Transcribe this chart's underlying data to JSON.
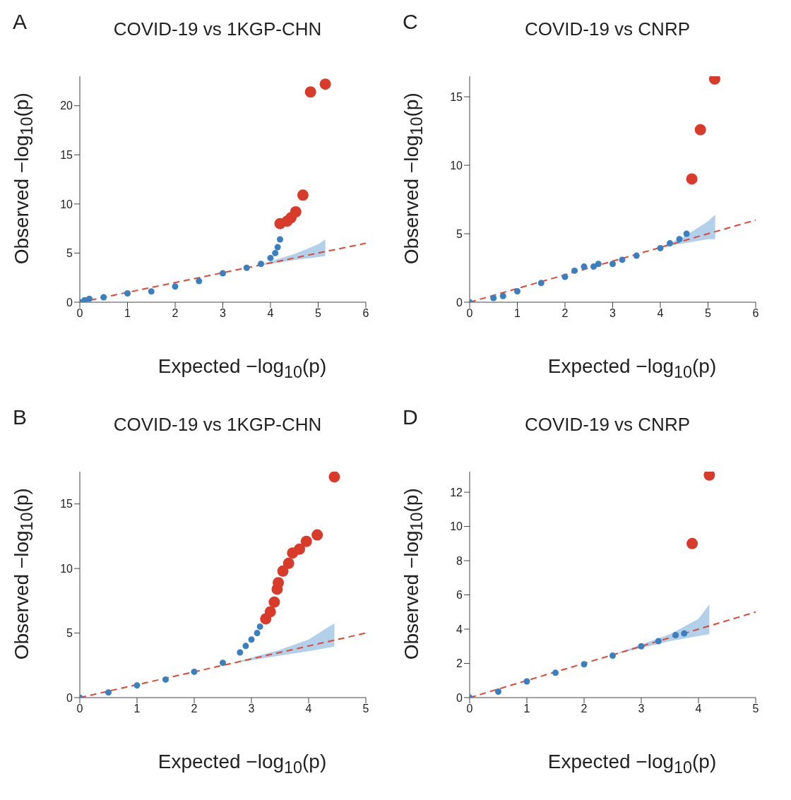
{
  "chart_data": [
    {
      "type": "scatter",
      "title": "COVID-19 vs 1KGP-CHN",
      "annotations": [
        "A"
      ],
      "xlabel": "Expected −log$_{10}$(p)",
      "ylabel": "Observed −log$_{10}$(p)",
      "xlim": [
        0,
        6
      ],
      "xticks": [
        0,
        1,
        2,
        3,
        4,
        5,
        6
      ],
      "ylim": [
        0,
        23
      ],
      "yticks": [
        0,
        5,
        10,
        15,
        20
      ],
      "marker": "circle",
      "series": [
        {
          "type": "line",
          "marker": "none",
          "color": "#e0473a",
          "line_style": "dashed",
          "x": [
            0,
            3.7,
            4,
            4.5,
            5,
            5.15,
            6
          ],
          "values": [
            0,
            3.7,
            4,
            4.5,
            5,
            5.15,
            6
          ],
          "lower": [
            null,
            3.7,
            3.9,
            4.3,
            4.6,
            4.7,
            null
          ],
          "upper": [
            null,
            3.7,
            4.15,
            4.9,
            5.9,
            6.4,
            null
          ]
        },
        {
          "color": "#3a7fbf",
          "x": [
            0,
            0.1,
            0.2,
            0.5,
            1,
            1.5,
            2,
            2.5,
            3,
            3.5,
            3.8,
            4.0,
            4.1,
            4.15,
            4.2
          ],
          "values": [
            0,
            0.2,
            0.35,
            0.5,
            0.9,
            1.1,
            1.6,
            2.15,
            2.95,
            3.5,
            3.9,
            4.5,
            5.0,
            5.6,
            6.4
          ]
        },
        {
          "color": "#d93b2b",
          "x": [
            4.2,
            4.35,
            4.43,
            4.53,
            4.68,
            4.84,
            5.15
          ],
          "values": [
            8.0,
            8.25,
            8.6,
            9.2,
            10.9,
            21.4,
            22.2
          ]
        }
      ]
    },
    {
      "type": "scatter",
      "title": "COVID-19 vs CNRP",
      "annotations": [
        "C"
      ],
      "xlabel": "Expected −log$_{10}$(p)",
      "ylabel": "Observed −log$_{10}$(p)",
      "xlim": [
        0,
        6
      ],
      "xticks": [
        0,
        1,
        2,
        3,
        4,
        5,
        6
      ],
      "ylim": [
        0,
        16.5
      ],
      "yticks": [
        0,
        5,
        10,
        15
      ],
      "marker": "circle",
      "series": [
        {
          "type": "line",
          "marker": "none",
          "color": "#e0473a",
          "line_style": "dashed",
          "x": [
            0,
            4,
            4.5,
            5,
            5.15,
            6
          ],
          "values": [
            0,
            4,
            4.5,
            5,
            5.15,
            6
          ],
          "lower": [
            null,
            4,
            4.3,
            4.6,
            4.6,
            null
          ],
          "upper": [
            null,
            4,
            4.8,
            5.9,
            6.4,
            null
          ]
        },
        {
          "color": "#3a7fbf",
          "x": [
            0,
            0.5,
            0.7,
            1,
            1.5,
            2,
            2.2,
            2.4,
            2.6,
            2.7,
            3,
            3.2,
            3.5,
            4,
            4.2,
            4.4,
            4.55
          ],
          "values": [
            0,
            0.3,
            0.45,
            0.8,
            1.4,
            1.85,
            2.3,
            2.6,
            2.6,
            2.8,
            2.8,
            3.1,
            3.4,
            3.95,
            4.3,
            4.6,
            5.0
          ]
        },
        {
          "color": "#d93b2b",
          "x": [
            4.66,
            4.84,
            5.14
          ],
          "values": [
            9.0,
            12.6,
            16.3
          ]
        }
      ]
    },
    {
      "type": "scatter",
      "title": "COVID-19 vs 1KGP-CHN",
      "annotations": [
        "B"
      ],
      "xlabel": "Expected −log$_{10}$(p)",
      "ylabel": "Observed −log$_{10}$(p)",
      "xlim": [
        0,
        5
      ],
      "xticks": [
        0,
        1,
        2,
        3,
        4,
        5
      ],
      "ylim": [
        0,
        17.5
      ],
      "yticks": [
        0,
        5,
        10,
        15
      ],
      "marker": "circle",
      "series": [
        {
          "type": "line",
          "marker": "none",
          "color": "#e0473a",
          "line_style": "dashed",
          "x": [
            0,
            2.6,
            3,
            3.5,
            4,
            4.45,
            5
          ],
          "values": [
            0,
            2.6,
            3,
            3.5,
            4,
            4.45,
            5
          ],
          "lower": [
            null,
            2.6,
            2.9,
            3.25,
            3.6,
            3.95,
            null
          ],
          "upper": [
            null,
            2.6,
            3.1,
            3.7,
            4.5,
            5.75,
            null
          ]
        },
        {
          "color": "#3a7fbf",
          "x": [
            0,
            0.5,
            1,
            1.5,
            2,
            2.5,
            2.8,
            2.9,
            3.0,
            3.1,
            3.15
          ],
          "values": [
            0,
            0.4,
            0.95,
            1.4,
            2.0,
            2.7,
            3.5,
            4.0,
            4.5,
            5.0,
            5.5
          ]
        },
        {
          "color": "#d93b2b",
          "x": [
            3.25,
            3.33,
            3.4,
            3.45,
            3.47,
            3.55,
            3.65,
            3.72,
            3.84,
            3.96,
            4.15,
            4.45
          ],
          "values": [
            6.1,
            6.65,
            7.4,
            8.4,
            8.9,
            9.8,
            10.4,
            11.2,
            11.5,
            12.1,
            12.6,
            17.1
          ]
        }
      ]
    },
    {
      "type": "scatter",
      "title": "COVID-19 vs CNRP",
      "annotations": [
        "D"
      ],
      "xlabel": "Expected −log$_{10}$(p)",
      "ylabel": "Observed −log$_{10}$(p)",
      "xlim": [
        0,
        5
      ],
      "xticks": [
        0,
        1,
        2,
        3,
        4,
        5
      ],
      "ylim": [
        0,
        13.2
      ],
      "yticks": [
        0,
        2,
        4,
        6,
        8,
        10,
        12
      ],
      "marker": "circle",
      "series": [
        {
          "type": "line",
          "marker": "none",
          "color": "#e0473a",
          "line_style": "dashed",
          "x": [
            0,
            2.5,
            3,
            3.5,
            4,
            4.19,
            5
          ],
          "values": [
            0,
            2.5,
            3,
            3.5,
            4,
            4.19,
            5
          ],
          "lower": [
            null,
            2.5,
            2.9,
            3.3,
            3.6,
            3.7,
            null
          ],
          "upper": [
            null,
            2.5,
            3.1,
            3.7,
            4.6,
            5.45,
            null
          ]
        },
        {
          "color": "#3a7fbf",
          "x": [
            0,
            0.5,
            1,
            1.5,
            2,
            2.5,
            3,
            3.3,
            3.6,
            3.75
          ],
          "values": [
            0,
            0.35,
            0.95,
            1.45,
            1.95,
            2.45,
            3.0,
            3.3,
            3.65,
            3.75
          ]
        },
        {
          "color": "#d93b2b",
          "x": [
            3.89,
            4.19
          ],
          "values": [
            9.0,
            13.0
          ]
        }
      ]
    }
  ]
}
